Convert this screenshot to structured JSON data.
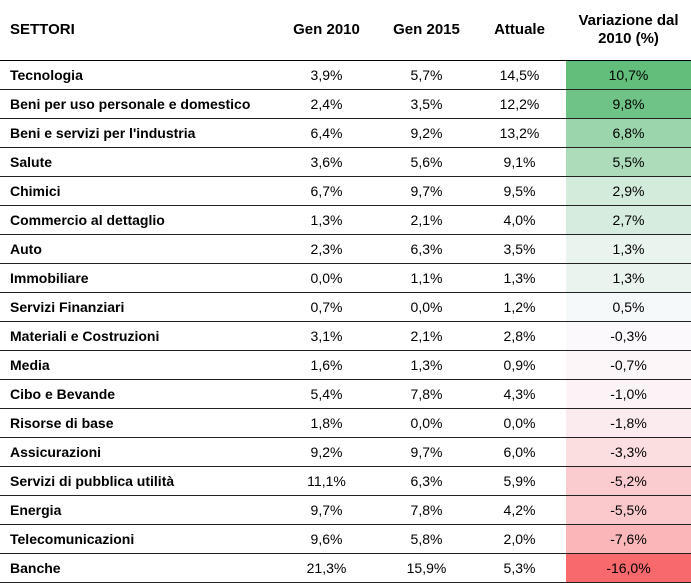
{
  "chart_data": {
    "type": "table",
    "columns": [
      "SETTORI",
      "Gen 2010",
      "Gen 2015",
      "Attuale",
      "Variazione dal 2010 (%)"
    ],
    "rows": [
      {
        "sector": "Tecnologia",
        "gen2010": "3,9%",
        "gen2015": "5,7%",
        "attuale": "14,5%",
        "variazione": "10,7%",
        "variazione_value": 10.7
      },
      {
        "sector": "Beni per uso personale e domestico",
        "gen2010": "2,4%",
        "gen2015": "3,5%",
        "attuale": "12,2%",
        "variazione": "9,8%",
        "variazione_value": 9.8
      },
      {
        "sector": "Beni e servizi per l'industria",
        "gen2010": "6,4%",
        "gen2015": "9,2%",
        "attuale": "13,2%",
        "variazione": "6,8%",
        "variazione_value": 6.8
      },
      {
        "sector": "Salute",
        "gen2010": "3,6%",
        "gen2015": "5,6%",
        "attuale": "9,1%",
        "variazione": "5,5%",
        "variazione_value": 5.5
      },
      {
        "sector": "Chimici",
        "gen2010": "6,7%",
        "gen2015": "9,7%",
        "attuale": "9,5%",
        "variazione": "2,9%",
        "variazione_value": 2.9
      },
      {
        "sector": "Commercio al dettaglio",
        "gen2010": "1,3%",
        "gen2015": "2,1%",
        "attuale": "4,0%",
        "variazione": "2,7%",
        "variazione_value": 2.7
      },
      {
        "sector": "Auto",
        "gen2010": "2,3%",
        "gen2015": "6,3%",
        "attuale": "3,5%",
        "variazione": "1,3%",
        "variazione_value": 1.3
      },
      {
        "sector": "Immobiliare",
        "gen2010": "0,0%",
        "gen2015": "1,1%",
        "attuale": "1,3%",
        "variazione": "1,3%",
        "variazione_value": 1.3
      },
      {
        "sector": "Servizi Finanziari",
        "gen2010": "0,7%",
        "gen2015": "0,0%",
        "attuale": "1,2%",
        "variazione": "0,5%",
        "variazione_value": 0.5
      },
      {
        "sector": "Materiali e Costruzioni",
        "gen2010": "3,1%",
        "gen2015": "2,1%",
        "attuale": "2,8%",
        "variazione": "-0,3%",
        "variazione_value": -0.3
      },
      {
        "sector": "Media",
        "gen2010": "1,6%",
        "gen2015": "1,3%",
        "attuale": "0,9%",
        "variazione": "-0,7%",
        "variazione_value": -0.7
      },
      {
        "sector": "Cibo e Bevande",
        "gen2010": "5,4%",
        "gen2015": "7,8%",
        "attuale": "4,3%",
        "variazione": "-1,0%",
        "variazione_value": -1.0
      },
      {
        "sector": "Risorse di base",
        "gen2010": "1,8%",
        "gen2015": "0,0%",
        "attuale": "0,0%",
        "variazione": "-1,8%",
        "variazione_value": -1.8
      },
      {
        "sector": "Assicurazioni",
        "gen2010": "9,2%",
        "gen2015": "9,7%",
        "attuale": "6,0%",
        "variazione": "-3,3%",
        "variazione_value": -3.3
      },
      {
        "sector": "Servizi di pubblica utilità",
        "gen2010": "11,1%",
        "gen2015": "6,3%",
        "attuale": "5,9%",
        "variazione": "-5,2%",
        "variazione_value": -5.2
      },
      {
        "sector": "Energia",
        "gen2010": "9,7%",
        "gen2015": "7,8%",
        "attuale": "4,2%",
        "variazione": "-5,5%",
        "variazione_value": -5.5
      },
      {
        "sector": "Telecomunicazioni",
        "gen2010": "9,6%",
        "gen2015": "5,8%",
        "attuale": "2,0%",
        "variazione": "-7,6%",
        "variazione_value": -7.6
      },
      {
        "sector": "Banche",
        "gen2010": "21,3%",
        "gen2015": "15,9%",
        "attuale": "5,3%",
        "variazione": "-16,0%",
        "variazione_value": -16.0
      }
    ],
    "colors": {
      "positive_max": "#63be7b",
      "neutral": "#fcfcff",
      "negative_max": "#f8696b"
    }
  }
}
